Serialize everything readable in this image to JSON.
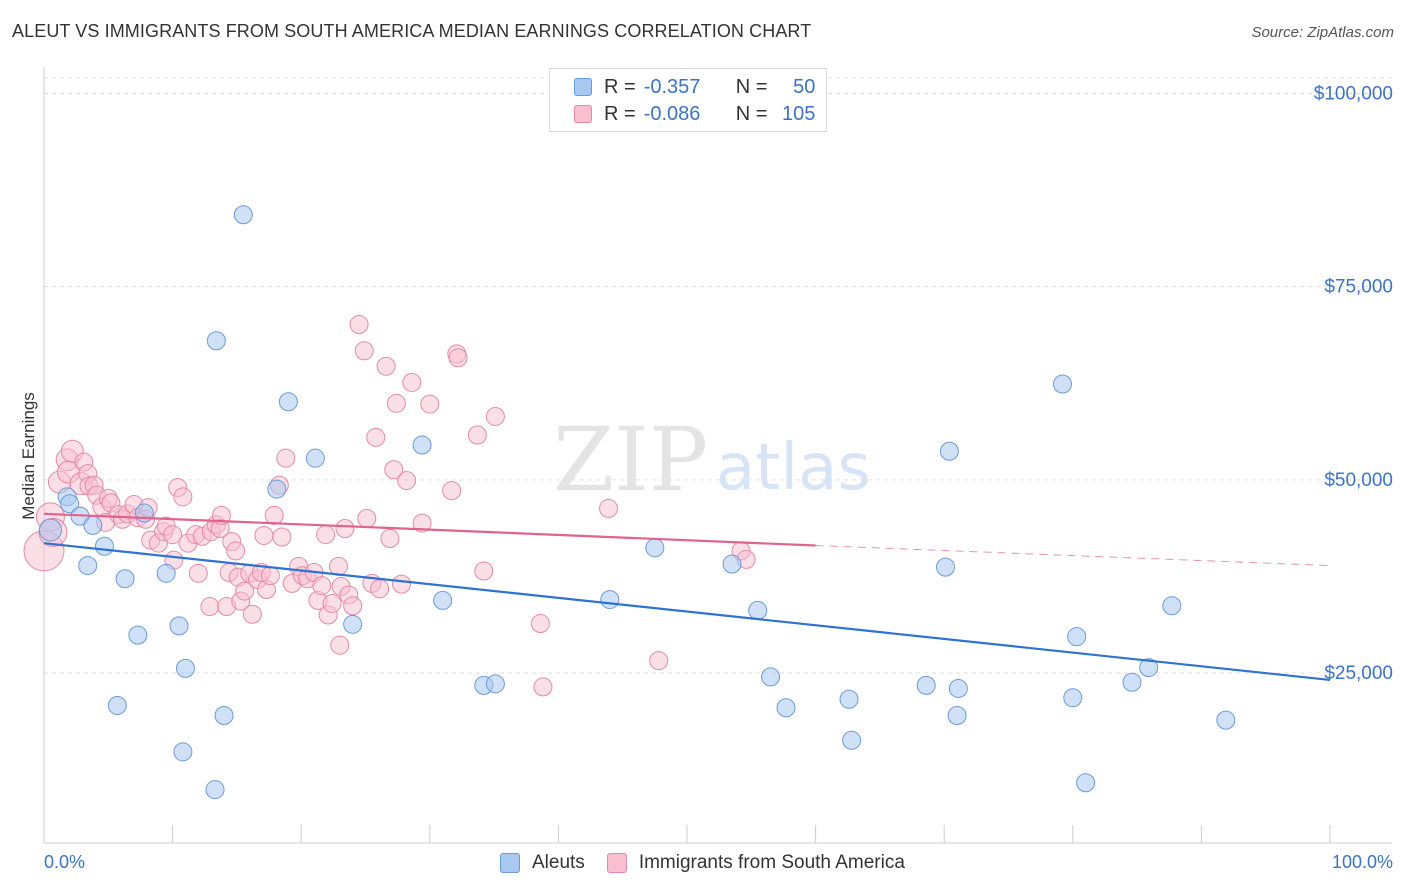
{
  "header": {
    "title": "ALEUT VS IMMIGRANTS FROM SOUTH AMERICA MEDIAN EARNINGS CORRELATION CHART",
    "source": "Source: ZipAtlas.com"
  },
  "watermark": {
    "zip": "ZIP",
    "atlas": "atlas"
  },
  "legend": {
    "rows": [
      {
        "r_label": "R =",
        "r_value": "-0.357",
        "n_label": "N =",
        "n_value": "50",
        "color": "#a9c8f0",
        "border": "#6a9bd8"
      },
      {
        "r_label": "R =",
        "r_value": "-0.086",
        "n_label": "N =",
        "n_value": "105",
        "color": "#f7bfd0",
        "border": "#e58aa6"
      }
    ]
  },
  "bottom_legend": [
    "Aleuts",
    "Immigrants from South America"
  ],
  "colors": {
    "blue_fill": "#a9c8f0",
    "blue_stroke": "#6a9bd8",
    "blue_line": "#2f73d1",
    "pink_fill": "#f7bfd0",
    "pink_stroke": "#e58aa6",
    "pink_line": "#e0628d",
    "axis_text": "#3b73c5",
    "grid": "#dddddd"
  },
  "chart_data": {
    "type": "scatter",
    "title": "ALEUT VS IMMIGRANTS FROM SOUTH AMERICA MEDIAN EARNINGS CORRELATION CHART",
    "ylabel": "Median Earnings",
    "xlabel": "",
    "x_tick_labels": [
      "0.0%",
      "100.0%"
    ],
    "y_tick_labels": [
      "$25,000",
      "$50,000",
      "$75,000",
      "$100,000"
    ],
    "y_ticks": [
      25000,
      50000,
      75000,
      100000
    ],
    "xlim": [
      0,
      100
    ],
    "ylim": [
      3000,
      102000
    ],
    "grid": true,
    "legend_position": "top-center",
    "series": [
      {
        "name": "Aleuts",
        "R": -0.357,
        "N": 50,
        "trend": {
          "x": [
            0,
            100
          ],
          "y": [
            41800,
            24100
          ]
        },
        "points": [
          [
            0.5,
            43500
          ],
          [
            1.8,
            47800
          ],
          [
            2,
            46900
          ],
          [
            2.8,
            45300
          ],
          [
            3.4,
            38900
          ],
          [
            3.8,
            44100
          ],
          [
            4.7,
            41400
          ],
          [
            5.7,
            20800
          ],
          [
            6.3,
            37200
          ],
          [
            7.3,
            29900
          ],
          [
            7.8,
            45700
          ],
          [
            9.5,
            37900
          ],
          [
            10.5,
            31100
          ],
          [
            10.8,
            14800
          ],
          [
            11,
            25600
          ],
          [
            13.3,
            9900
          ],
          [
            13.4,
            68000
          ],
          [
            14,
            19500
          ],
          [
            15.5,
            84300
          ],
          [
            18.1,
            48800
          ],
          [
            19,
            60100
          ],
          [
            21.1,
            52800
          ],
          [
            24,
            31300
          ],
          [
            29.4,
            54500
          ],
          [
            31,
            34400
          ],
          [
            34.2,
            23400
          ],
          [
            35.1,
            23600
          ],
          [
            44,
            34500
          ],
          [
            47.5,
            41200
          ],
          [
            53.5,
            39100
          ],
          [
            55.5,
            33100
          ],
          [
            56.5,
            24500
          ],
          [
            57.7,
            20500
          ],
          [
            62.6,
            21600
          ],
          [
            62.8,
            16300
          ],
          [
            68.6,
            23400
          ],
          [
            70.1,
            38700
          ],
          [
            70.4,
            53700
          ],
          [
            71,
            19500
          ],
          [
            71.1,
            23000
          ],
          [
            79.2,
            62400
          ],
          [
            80,
            21800
          ],
          [
            80.3,
            29700
          ],
          [
            81,
            10800
          ],
          [
            84.6,
            23800
          ],
          [
            85.9,
            25700
          ],
          [
            87.7,
            33700
          ],
          [
            91.9,
            18900
          ]
        ]
      },
      {
        "name": "Immigrants from South America",
        "R": -0.086,
        "N": 105,
        "trend_solid": {
          "x": [
            0,
            60
          ],
          "y": [
            45600,
            41500
          ]
        },
        "trend_dashed": {
          "x": [
            60,
            100
          ],
          "y": [
            41500,
            38900
          ]
        },
        "points": [
          [
            0,
            40800
          ],
          [
            0.5,
            45200
          ],
          [
            0.7,
            43200
          ],
          [
            1.2,
            49700
          ],
          [
            1.8,
            52600
          ],
          [
            1.9,
            51000
          ],
          [
            2.2,
            53700
          ],
          [
            2.9,
            49500
          ],
          [
            3.1,
            52300
          ],
          [
            3.4,
            50800
          ],
          [
            3.5,
            49200
          ],
          [
            3.9,
            49300
          ],
          [
            4.1,
            48000
          ],
          [
            4.5,
            46500
          ],
          [
            4.8,
            44500
          ],
          [
            5,
            47600
          ],
          [
            5.2,
            47000
          ],
          [
            5.8,
            45500
          ],
          [
            6.1,
            44900
          ],
          [
            6.5,
            45600
          ],
          [
            7,
            46800
          ],
          [
            7.3,
            45100
          ],
          [
            7.9,
            44900
          ],
          [
            8.1,
            46400
          ],
          [
            8.3,
            42200
          ],
          [
            8.9,
            41800
          ],
          [
            9.3,
            43300
          ],
          [
            9.5,
            44000
          ],
          [
            10,
            42900
          ],
          [
            10.1,
            39600
          ],
          [
            10.4,
            49000
          ],
          [
            10.8,
            47800
          ],
          [
            11.2,
            41800
          ],
          [
            11.8,
            42900
          ],
          [
            12,
            37900
          ],
          [
            12.3,
            42700
          ],
          [
            12.9,
            33600
          ],
          [
            13,
            43300
          ],
          [
            13.4,
            44200
          ],
          [
            13.7,
            43700
          ],
          [
            13.8,
            45400
          ],
          [
            14.2,
            33600
          ],
          [
            14.4,
            38000
          ],
          [
            14.6,
            42000
          ],
          [
            14.9,
            40800
          ],
          [
            15.1,
            37400
          ],
          [
            15.3,
            34300
          ],
          [
            15.6,
            35600
          ],
          [
            16,
            37900
          ],
          [
            16.2,
            32600
          ],
          [
            16.6,
            37100
          ],
          [
            16.9,
            38000
          ],
          [
            17.1,
            42800
          ],
          [
            17.3,
            35800
          ],
          [
            17.6,
            37600
          ],
          [
            17.9,
            45400
          ],
          [
            18.3,
            49300
          ],
          [
            18.5,
            42600
          ],
          [
            18.8,
            52800
          ],
          [
            19.3,
            36600
          ],
          [
            19.8,
            38800
          ],
          [
            20.1,
            37600
          ],
          [
            20.5,
            37200
          ],
          [
            21,
            38000
          ],
          [
            21.3,
            34400
          ],
          [
            21.6,
            36300
          ],
          [
            21.9,
            42900
          ],
          [
            22.1,
            32500
          ],
          [
            22.4,
            34000
          ],
          [
            22.9,
            38800
          ],
          [
            23,
            28600
          ],
          [
            23.1,
            36200
          ],
          [
            23.4,
            43700
          ],
          [
            23.7,
            35100
          ],
          [
            24,
            33700
          ],
          [
            24.5,
            70100
          ],
          [
            24.9,
            66700
          ],
          [
            25.1,
            45000
          ],
          [
            25.5,
            36600
          ],
          [
            25.8,
            55500
          ],
          [
            26.1,
            35900
          ],
          [
            26.6,
            64700
          ],
          [
            26.9,
            42400
          ],
          [
            27.2,
            51300
          ],
          [
            27.4,
            59900
          ],
          [
            27.8,
            36500
          ],
          [
            28.2,
            49900
          ],
          [
            28.6,
            62600
          ],
          [
            29.4,
            44400
          ],
          [
            30,
            59800
          ],
          [
            31.7,
            48600
          ],
          [
            32.1,
            66300
          ],
          [
            32.2,
            65800
          ],
          [
            33.7,
            55800
          ],
          [
            34.2,
            38200
          ],
          [
            35.1,
            58200
          ],
          [
            38.6,
            31400
          ],
          [
            38.8,
            23200
          ],
          [
            43.9,
            46300
          ],
          [
            47.8,
            26600
          ],
          [
            54.2,
            40800
          ],
          [
            54.6,
            39700
          ]
        ]
      }
    ]
  }
}
